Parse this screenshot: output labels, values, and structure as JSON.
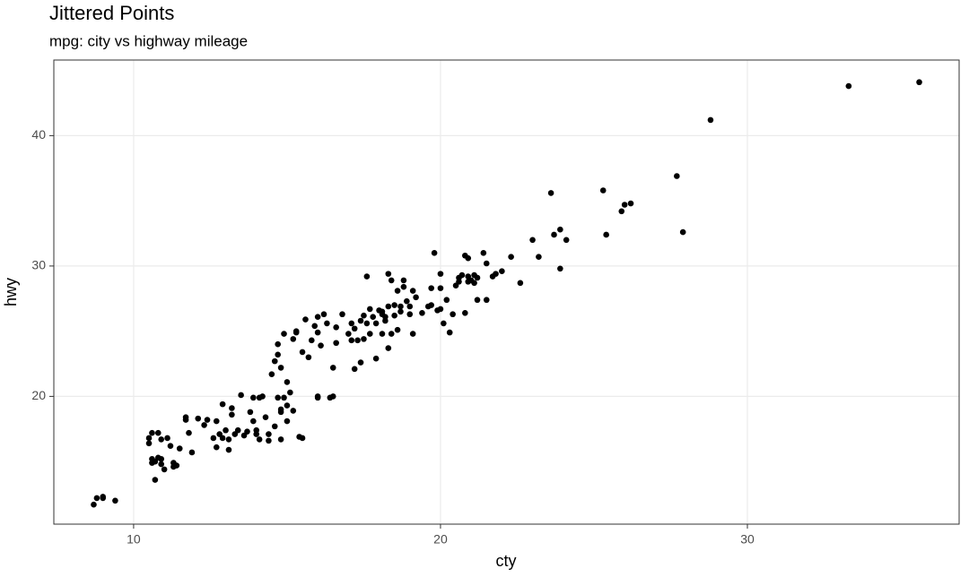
{
  "chart_data": {
    "type": "scatter",
    "title": "Jittered Points",
    "subtitle": "mpg: city vs highway mileage",
    "x_label": "cty",
    "y_label": "hwy",
    "color": "#000000",
    "grid": true,
    "xlim": [
      7.4,
      36.9
    ],
    "ylim": [
      10.2,
      45.8
    ],
    "xticks": [
      10,
      20,
      30
    ],
    "yticks": [
      20,
      30,
      40
    ],
    "x": [
      8.7,
      8.8,
      9.0,
      9.0,
      9.4,
      10.5,
      10.5,
      10.6,
      10.8,
      10.9,
      10.6,
      10.7,
      10.8,
      10.9,
      10.6,
      10.9,
      10.7,
      11.1,
      11.2,
      11.3,
      11.0,
      11.3,
      11.4,
      11.5,
      11.8,
      11.7,
      11.7,
      11.9,
      12.1,
      12.3,
      12.4,
      12.7,
      12.6,
      12.7,
      12.9,
      12.8,
      12.9,
      13.1,
      13.0,
      13.1,
      13.2,
      13.2,
      13.3,
      13.4,
      13.5,
      13.6,
      13.7,
      13.8,
      13.9,
      13.9,
      14.0,
      14.0,
      14.1,
      14.1,
      14.2,
      14.3,
      14.4,
      14.4,
      14.5,
      14.6,
      14.6,
      14.7,
      14.7,
      14.7,
      14.8,
      14.8,
      14.8,
      14.9,
      14.8,
      14.9,
      15.0,
      15.0,
      15.0,
      15.1,
      15.2,
      15.2,
      15.3,
      15.3,
      15.4,
      15.5,
      15.5,
      15.6,
      15.7,
      15.8,
      15.9,
      16.0,
      16.0,
      16.0,
      16.0,
      16.1,
      16.2,
      16.3,
      16.4,
      16.5,
      16.5,
      16.6,
      16.6,
      16.8,
      17.0,
      17.1,
      17.1,
      17.2,
      17.2,
      17.3,
      17.4,
      17.4,
      17.5,
      17.5,
      17.6,
      17.6,
      17.7,
      17.7,
      17.8,
      17.9,
      17.9,
      18.0,
      18.1,
      18.1,
      18.1,
      18.2,
      18.2,
      18.3,
      18.3,
      18.3,
      18.4,
      18.4,
      18.5,
      18.5,
      18.6,
      18.6,
      18.7,
      18.7,
      18.8,
      18.8,
      18.9,
      19.0,
      19.0,
      19.1,
      19.1,
      19.2,
      19.4,
      19.6,
      19.7,
      19.7,
      19.8,
      19.9,
      20.0,
      20.0,
      20.0,
      20.1,
      20.2,
      20.3,
      20.4,
      20.5,
      20.6,
      20.6,
      20.7,
      20.8,
      20.8,
      20.9,
      20.9,
      20.9,
      21.0,
      21.1,
      21.1,
      21.2,
      21.2,
      21.4,
      21.5,
      21.5,
      21.7,
      21.8,
      22.0,
      22.3,
      22.6,
      23.0,
      23.2,
      23.6,
      23.7,
      23.9,
      23.9,
      24.1,
      25.3,
      25.4,
      25.9,
      26.0,
      26.2,
      27.7,
      27.9,
      28.8,
      33.3,
      35.6
    ],
    "values": [
      11.7,
      12.2,
      12.2,
      12.3,
      12.0,
      16.4,
      16.8,
      17.2,
      17.2,
      16.7,
      15.2,
      15.0,
      15.3,
      15.2,
      14.9,
      14.8,
      13.6,
      16.8,
      16.2,
      14.6,
      14.4,
      14.9,
      14.7,
      16.0,
      17.2,
      18.2,
      18.4,
      15.7,
      18.3,
      17.8,
      18.2,
      18.1,
      16.8,
      16.1,
      19.4,
      17.1,
      16.8,
      15.9,
      17.4,
      16.7,
      18.6,
      19.1,
      17.1,
      17.4,
      20.1,
      17.0,
      17.3,
      18.8,
      18.1,
      19.9,
      17.4,
      17.1,
      16.7,
      19.9,
      20.0,
      18.4,
      16.6,
      17.1,
      21.7,
      22.7,
      17.7,
      23.2,
      19.9,
      24.0,
      18.8,
      19.0,
      16.7,
      24.8,
      22.2,
      19.9,
      18.1,
      19.3,
      21.1,
      20.3,
      24.4,
      18.9,
      25.0,
      24.9,
      16.9,
      16.8,
      23.4,
      25.9,
      23.0,
      24.3,
      25.4,
      26.1,
      19.9,
      20.0,
      24.9,
      23.9,
      26.3,
      25.6,
      19.9,
      20.0,
      22.2,
      25.3,
      24.1,
      26.3,
      24.8,
      25.6,
      24.3,
      22.1,
      25.2,
      24.3,
      22.6,
      25.8,
      24.4,
      26.2,
      29.2,
      25.6,
      26.7,
      24.8,
      26.1,
      22.9,
      25.6,
      26.6,
      26.3,
      26.5,
      24.8,
      25.8,
      26.1,
      29.4,
      23.7,
      26.9,
      24.8,
      28.9,
      26.2,
      27.0,
      28.1,
      25.1,
      26.5,
      26.9,
      28.4,
      28.9,
      27.3,
      26.3,
      26.9,
      24.8,
      28.1,
      27.6,
      26.4,
      26.9,
      28.3,
      27.0,
      31.0,
      26.6,
      28.3,
      29.4,
      26.7,
      25.6,
      27.4,
      24.9,
      26.3,
      28.5,
      29.1,
      28.8,
      29.3,
      26.4,
      30.8,
      30.6,
      28.8,
      29.2,
      28.9,
      29.3,
      28.7,
      29.1,
      27.4,
      31.0,
      30.2,
      27.4,
      29.2,
      29.4,
      29.6,
      30.7,
      28.7,
      32.0,
      30.7,
      35.6,
      32.4,
      32.8,
      29.8,
      32.0,
      35.8,
      32.4,
      34.2,
      34.7,
      34.8,
      36.9,
      32.6,
      41.2,
      43.8,
      44.1
    ]
  }
}
